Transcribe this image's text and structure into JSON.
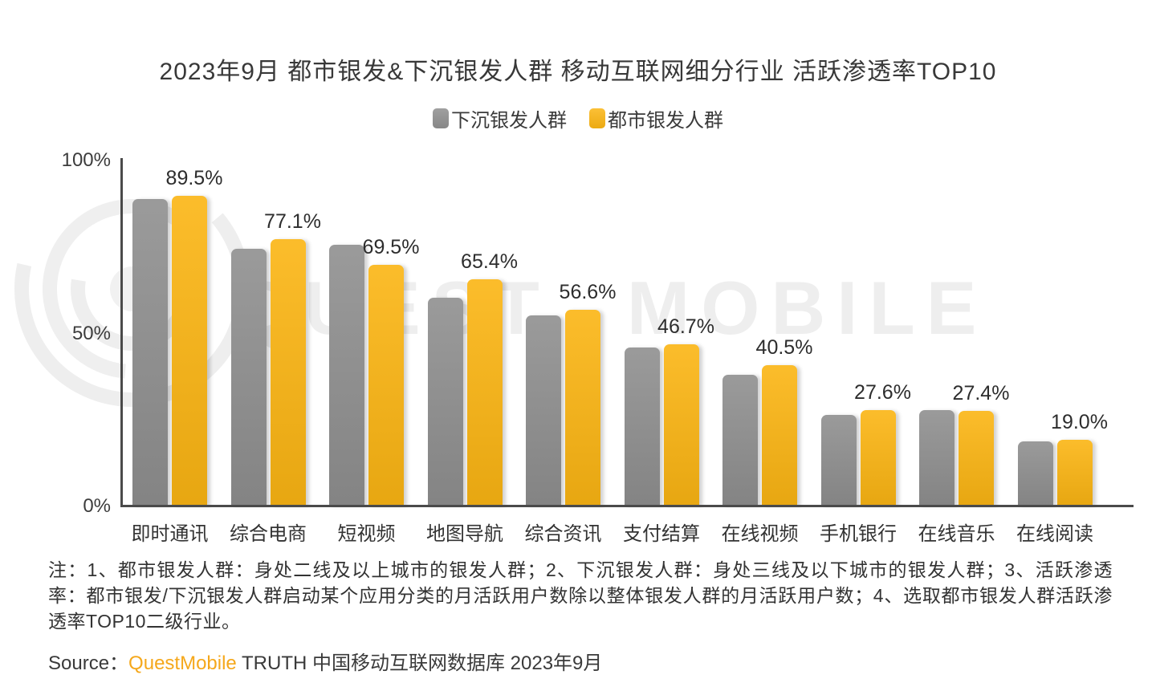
{
  "title": "2023年9月 都市银发&下沉银发人群 移动互联网细分行业 活跃渗透率TOP10",
  "legend": [
    {
      "label": "下沉银发人群",
      "color": "#8f8f8f"
    },
    {
      "label": "都市银发人群",
      "color": "#fbb513"
    }
  ],
  "watermark": {
    "text": "QUEST MOBILE",
    "logo": "questmobile-rings-logo",
    "color": "#eeeeee"
  },
  "chart_data": {
    "type": "bar",
    "title": "2023年9月 都市银发&下沉银发人群 移动互联网细分行业 活跃渗透率TOP10",
    "categories": [
      "即时通讯",
      "综合电商",
      "短视频",
      "地图导航",
      "综合资讯",
      "支付结算",
      "在线视频",
      "手机银行",
      "在线音乐",
      "在线阅读"
    ],
    "series": [
      {
        "name": "下沉银发人群",
        "color": "#8f8f8f",
        "values": [
          88.6,
          74.3,
          75.4,
          60.0,
          55.0,
          45.7,
          37.8,
          26.3,
          27.7,
          18.5
        ],
        "values_note": "estimated from bar heights, no data labels shown"
      },
      {
        "name": "都市银发人群",
        "color": "#fbb513",
        "values": [
          89.5,
          77.1,
          69.5,
          65.4,
          56.6,
          46.7,
          40.5,
          27.6,
          27.4,
          19.0
        ]
      }
    ],
    "value_labels": [
      "89.5%",
      "77.1%",
      "69.5%",
      "65.4%",
      "56.6%",
      "46.7%",
      "40.5%",
      "27.6%",
      "27.4%",
      "19.0%"
    ],
    "xlabel": "",
    "ylabel": "",
    "ylim": [
      0,
      100
    ],
    "yticks": [
      {
        "value": 100,
        "label": "100%"
      },
      {
        "value": 50,
        "label": "50%"
      },
      {
        "value": 0,
        "label": "0%"
      }
    ],
    "grid": false,
    "legend_position": "top"
  },
  "note": "注：1、都市银发人群：身处二线及以上城市的银发人群；2、下沉银发人群：身处三线及以下城市的银发人群；3、活跃渗透率：都市银发/下沉银发人群启动某个应用分类的月活跃用户数除以整体银发人群的月活跃用户数；4、选取都市银发人群活跃渗透率TOP10二级行业。",
  "source": {
    "prefix": "Source：",
    "brand": "QuestMobile",
    "suffix": " TRUTH 中国移动互联网数据库 2023年9月"
  }
}
